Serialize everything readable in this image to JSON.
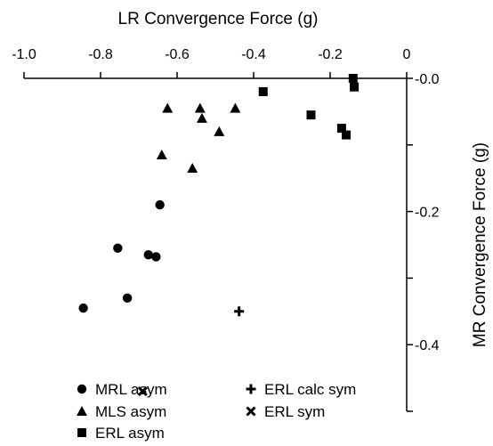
{
  "chart_data": {
    "type": "scatter",
    "xlabel": "LR Convergence Force (g)",
    "ylabel": "MR Convergence Force (g)",
    "xlim": [
      -1.0,
      0.0
    ],
    "ylim": [
      -0.5,
      0.0
    ],
    "x_ticks": [
      "-1.0",
      "-0.8",
      "-0.6",
      "-0.4",
      "-0.2",
      "0"
    ],
    "y_ticks": [
      "-0.0",
      "-0.2",
      "-0.4"
    ],
    "x_axis_position": "top",
    "y_axis_position": "right",
    "grid": false,
    "legend_position": "bottom-left",
    "series": [
      {
        "name": "MRL asym",
        "marker": "circle",
        "color": "#000000",
        "points": [
          [
            -0.845,
            -0.345
          ],
          [
            -0.755,
            -0.255
          ],
          [
            -0.73,
            -0.33
          ],
          [
            -0.675,
            -0.265
          ],
          [
            -0.655,
            -0.268
          ],
          [
            -0.645,
            -0.19
          ]
        ]
      },
      {
        "name": "MLS asym",
        "marker": "triangle",
        "color": "#000000",
        "points": [
          [
            -0.625,
            -0.045
          ],
          [
            -0.64,
            -0.115
          ],
          [
            -0.56,
            -0.135
          ],
          [
            -0.54,
            -0.045
          ],
          [
            -0.535,
            -0.06
          ],
          [
            -0.49,
            -0.08
          ],
          [
            -0.448,
            -0.045
          ]
        ]
      },
      {
        "name": "ERL asym",
        "marker": "square",
        "color": "#000000",
        "points": [
          [
            -0.375,
            -0.02
          ],
          [
            -0.25,
            -0.055
          ],
          [
            -0.17,
            -0.075
          ],
          [
            -0.158,
            -0.085
          ],
          [
            -0.14,
            0.0
          ],
          [
            -0.137,
            -0.013
          ]
        ]
      },
      {
        "name": "ERL calc sym",
        "marker": "plus",
        "color": "#000000",
        "points": [
          [
            -0.438,
            -0.35
          ]
        ]
      },
      {
        "name": "ERL sym",
        "marker": "x",
        "color": "#000000",
        "points": [
          [
            -0.69,
            -0.47
          ]
        ]
      }
    ]
  }
}
